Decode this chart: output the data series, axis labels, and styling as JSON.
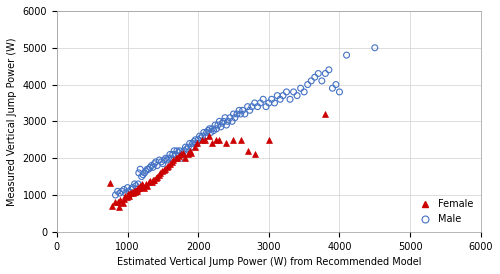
{
  "title": "",
  "xlabel": "Estimated Vertical Jump Power (W) from Recommended Model",
  "ylabel": "Measured Vertical Jump Power (W)",
  "xlim": [
    0,
    6000
  ],
  "ylim": [
    0,
    6000
  ],
  "xticks": [
    0,
    1000,
    2000,
    3000,
    4000,
    5000,
    6000
  ],
  "yticks": [
    0,
    1000,
    2000,
    3000,
    4000,
    5000,
    6000
  ],
  "female_color": "#CC0000",
  "male_color": "#4472C4",
  "female_marker": "^",
  "male_marker": "o",
  "female_x": [
    750,
    780,
    820,
    860,
    880,
    900,
    930,
    950,
    970,
    990,
    1000,
    1010,
    1020,
    1040,
    1060,
    1080,
    1090,
    1100,
    1110,
    1120,
    1130,
    1140,
    1150,
    1160,
    1180,
    1200,
    1220,
    1240,
    1260,
    1280,
    1300,
    1320,
    1340,
    1360,
    1380,
    1400,
    1420,
    1440,
    1460,
    1490,
    1510,
    1530,
    1560,
    1580,
    1600,
    1630,
    1650,
    1680,
    1700,
    1730,
    1750,
    1780,
    1810,
    1850,
    1880,
    1900,
    1950,
    1990,
    2050,
    2100,
    2150,
    2200,
    2250,
    2300,
    2400,
    2500,
    2600,
    2700,
    2800,
    3000,
    3800
  ],
  "female_y": [
    1320,
    700,
    820,
    800,
    680,
    860,
    780,
    900,
    960,
    950,
    1000,
    1020,
    980,
    1050,
    1070,
    1050,
    1100,
    1080,
    1120,
    1100,
    1150,
    1100,
    1200,
    1180,
    1250,
    1300,
    1250,
    1200,
    1300,
    1250,
    1350,
    1380,
    1350,
    1400,
    1420,
    1450,
    1500,
    1550,
    1600,
    1650,
    1680,
    1700,
    1750,
    1800,
    1850,
    1900,
    1950,
    2000,
    2000,
    2050,
    2100,
    2150,
    2000,
    2100,
    2200,
    2150,
    2300,
    2400,
    2500,
    2500,
    2600,
    2400,
    2500,
    2500,
    2400,
    2500,
    2500,
    2200,
    2100,
    2500,
    3200
  ],
  "male_x": [
    830,
    860,
    890,
    920,
    950,
    970,
    1000,
    1020,
    1050,
    1070,
    1100,
    1120,
    1150,
    1160,
    1180,
    1200,
    1220,
    1240,
    1260,
    1280,
    1300,
    1320,
    1340,
    1360,
    1380,
    1400,
    1420,
    1450,
    1480,
    1500,
    1520,
    1540,
    1560,
    1580,
    1600,
    1620,
    1640,
    1660,
    1680,
    1700,
    1720,
    1740,
    1760,
    1780,
    1800,
    1820,
    1840,
    1860,
    1880,
    1900,
    1920,
    1940,
    1960,
    1980,
    2000,
    2020,
    2040,
    2060,
    2080,
    2100,
    2120,
    2140,
    2160,
    2180,
    2200,
    2220,
    2240,
    2260,
    2280,
    2300,
    2320,
    2340,
    2360,
    2380,
    2400,
    2420,
    2450,
    2480,
    2500,
    2520,
    2550,
    2580,
    2600,
    2630,
    2660,
    2700,
    2730,
    2760,
    2800,
    2840,
    2880,
    2920,
    2960,
    3000,
    3040,
    3080,
    3120,
    3160,
    3200,
    3250,
    3300,
    3350,
    3400,
    3450,
    3500,
    3550,
    3600,
    3650,
    3700,
    3750,
    3800,
    3850,
    3900,
    3950,
    4000,
    4100,
    4500
  ],
  "male_y": [
    1000,
    1100,
    1050,
    1100,
    1150,
    1050,
    1200,
    1100,
    1150,
    1200,
    1300,
    1250,
    1300,
    1600,
    1700,
    1500,
    1550,
    1600,
    1650,
    1700,
    1700,
    1750,
    1800,
    1750,
    1850,
    1900,
    1800,
    1950,
    1900,
    1850,
    1950,
    2000,
    1950,
    2000,
    2100,
    2000,
    2100,
    2200,
    2100,
    2200,
    2150,
    2200,
    2000,
    2100,
    2200,
    2300,
    2250,
    2300,
    2400,
    2300,
    2400,
    2450,
    2500,
    2400,
    2500,
    2600,
    2550,
    2600,
    2700,
    2600,
    2700,
    2750,
    2800,
    2700,
    2800,
    2750,
    2900,
    2800,
    2900,
    3000,
    2850,
    2950,
    3000,
    3100,
    2900,
    3000,
    3100,
    3000,
    3200,
    3100,
    3200,
    3300,
    3200,
    3300,
    3200,
    3400,
    3300,
    3400,
    3500,
    3400,
    3500,
    3600,
    3400,
    3500,
    3600,
    3500,
    3700,
    3600,
    3700,
    3800,
    3600,
    3800,
    3700,
    3900,
    3800,
    4000,
    4100,
    4200,
    4300,
    4100,
    4300,
    4400,
    3900,
    4000,
    3800,
    4800,
    5000
  ]
}
